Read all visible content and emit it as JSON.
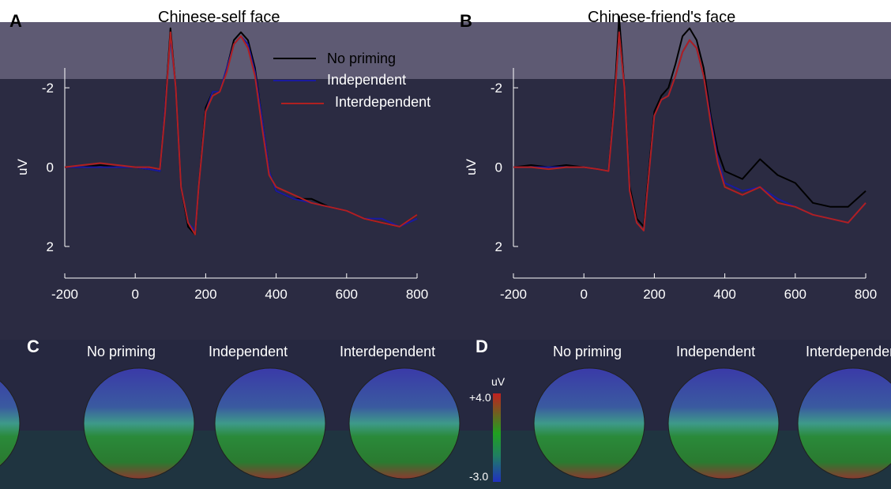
{
  "panels": {
    "A": {
      "letter": "A",
      "title": "Chinese-self face"
    },
    "B": {
      "letter": "B",
      "title": "Chinese-friend's face"
    },
    "C": {
      "letter": "C"
    },
    "D": {
      "letter": "D"
    }
  },
  "legend": {
    "items": [
      {
        "label": "No priming",
        "color": "#000000"
      },
      {
        "label": "Independent",
        "color": "#1a1aa0"
      },
      {
        "label": "Interdependent",
        "color": "#b02020"
      }
    ]
  },
  "topo_labels": [
    "No priming",
    "Independent",
    "Interdependent"
  ],
  "colorbar": {
    "unit": "uV",
    "max_label": "+4.0",
    "min_label": "-3.0"
  },
  "chart_data": [
    {
      "type": "line",
      "title": "Chinese-self face",
      "xlabel": "",
      "ylabel": "uV",
      "xlim": [
        -200,
        800
      ],
      "ylim": [
        -2.5,
        2
      ],
      "y_inverted": true,
      "xticks": [
        -200,
        0,
        200,
        400,
        600,
        800
      ],
      "yticks": [
        -2,
        0,
        2
      ],
      "series": [
        {
          "name": "No priming",
          "color": "#000000",
          "x": [
            -200,
            -150,
            -100,
            -50,
            0,
            40,
            70,
            85,
            100,
            115,
            130,
            150,
            170,
            180,
            200,
            220,
            240,
            260,
            280,
            300,
            320,
            340,
            360,
            380,
            400,
            450,
            500,
            550,
            600,
            650,
            700,
            750,
            800
          ],
          "y": [
            0,
            0,
            -0.05,
            0,
            0,
            0.05,
            0.1,
            -1.5,
            -3.5,
            -2,
            0.5,
            1.5,
            1.7,
            0.5,
            -1.5,
            -1.9,
            -1.9,
            -2.5,
            -3.2,
            -3.4,
            -3.2,
            -2.5,
            -1.2,
            0.1,
            0.6,
            0.8,
            0.8,
            1.0,
            1.1,
            1.3,
            1.4,
            1.5,
            1.2
          ]
        },
        {
          "name": "Independent",
          "color": "#1a1aa0",
          "x": [
            -200,
            -150,
            -100,
            -50,
            0,
            40,
            70,
            85,
            100,
            115,
            130,
            150,
            170,
            180,
            200,
            220,
            240,
            260,
            280,
            300,
            320,
            340,
            360,
            380,
            400,
            450,
            500,
            550,
            600,
            650,
            700,
            750,
            800
          ],
          "y": [
            0,
            0,
            0,
            0,
            0,
            0.05,
            0.1,
            -1.5,
            -3.3,
            -2,
            0.5,
            1.4,
            1.6,
            0.5,
            -1.4,
            -1.9,
            -1.9,
            -2.5,
            -3.1,
            -3.3,
            -3.1,
            -2.4,
            -1.2,
            0.1,
            0.6,
            0.8,
            0.9,
            1.0,
            1.1,
            1.3,
            1.3,
            1.5,
            1.3
          ]
        },
        {
          "name": "Interdependent",
          "color": "#b02020",
          "x": [
            -200,
            -150,
            -100,
            -50,
            0,
            40,
            70,
            85,
            100,
            115,
            130,
            150,
            170,
            180,
            200,
            220,
            240,
            260,
            280,
            300,
            320,
            340,
            360,
            380,
            400,
            450,
            500,
            550,
            600,
            650,
            700,
            750,
            800
          ],
          "y": [
            0,
            -0.05,
            -0.1,
            -0.05,
            0,
            0,
            0.05,
            -1.4,
            -3.4,
            -2,
            0.5,
            1.4,
            1.7,
            0.5,
            -1.4,
            -1.8,
            -1.9,
            -2.4,
            -3.1,
            -3.3,
            -3.0,
            -2.3,
            -1.0,
            0.2,
            0.5,
            0.7,
            0.9,
            1.0,
            1.1,
            1.3,
            1.4,
            1.5,
            1.2
          ]
        }
      ]
    },
    {
      "type": "line",
      "title": "Chinese-friend's face",
      "xlabel": "",
      "ylabel": "uV",
      "xlim": [
        -200,
        800
      ],
      "ylim": [
        -2.5,
        2
      ],
      "y_inverted": true,
      "xticks": [
        -200,
        0,
        200,
        400,
        600,
        800
      ],
      "yticks": [
        -2,
        0,
        2
      ],
      "series": [
        {
          "name": "No priming",
          "color": "#000000",
          "x": [
            -200,
            -150,
            -100,
            -50,
            0,
            40,
            70,
            85,
            100,
            115,
            130,
            150,
            170,
            180,
            200,
            220,
            240,
            260,
            280,
            300,
            320,
            340,
            360,
            380,
            400,
            450,
            500,
            550,
            600,
            650,
            700,
            750,
            800
          ],
          "y": [
            0,
            -0.05,
            0,
            -0.05,
            0,
            0.05,
            0.1,
            -1.5,
            -3.8,
            -2,
            0.5,
            1.3,
            1.5,
            0.5,
            -1.4,
            -1.8,
            -2.0,
            -2.6,
            -3.3,
            -3.5,
            -3.2,
            -2.5,
            -1.3,
            -0.4,
            0.1,
            0.3,
            -0.2,
            0.2,
            0.4,
            0.9,
            1.0,
            1.0,
            0.6
          ]
        },
        {
          "name": "Independent",
          "color": "#1a1aa0",
          "x": [
            -200,
            -150,
            -100,
            -50,
            0,
            40,
            70,
            85,
            100,
            115,
            130,
            150,
            170,
            180,
            200,
            220,
            240,
            260,
            280,
            300,
            320,
            340,
            360,
            380,
            400,
            450,
            500,
            550,
            600,
            650,
            700,
            750,
            800
          ],
          "y": [
            0,
            0,
            0,
            0,
            0,
            0.05,
            0.1,
            -1.4,
            -3.4,
            -2,
            0.6,
            1.4,
            1.6,
            0.6,
            -1.3,
            -1.7,
            -1.8,
            -2.3,
            -2.9,
            -3.2,
            -3.0,
            -2.3,
            -1.2,
            -0.2,
            0.4,
            0.6,
            0.5,
            0.8,
            1.0,
            1.2,
            1.3,
            1.4,
            0.9
          ]
        },
        {
          "name": "Interdependent",
          "color": "#b02020",
          "x": [
            -200,
            -150,
            -100,
            -50,
            0,
            40,
            70,
            85,
            100,
            115,
            130,
            150,
            170,
            180,
            200,
            220,
            240,
            260,
            280,
            300,
            320,
            340,
            360,
            380,
            400,
            450,
            500,
            550,
            600,
            650,
            700,
            750,
            800
          ],
          "y": [
            0,
            0,
            0.05,
            0,
            0,
            0.05,
            0.1,
            -1.4,
            -3.4,
            -2,
            0.6,
            1.4,
            1.6,
            0.6,
            -1.3,
            -1.7,
            -1.8,
            -2.3,
            -2.9,
            -3.2,
            -3.0,
            -2.3,
            -1.1,
            -0.1,
            0.5,
            0.7,
            0.5,
            0.9,
            1.0,
            1.2,
            1.3,
            1.4,
            0.9
          ]
        }
      ]
    }
  ]
}
